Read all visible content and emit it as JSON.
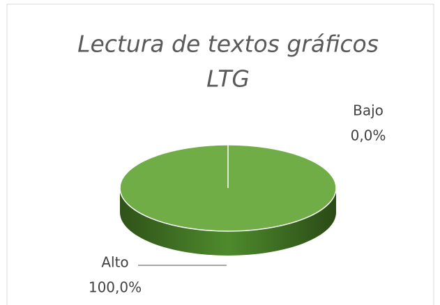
{
  "chart_data": {
    "type": "pie3d",
    "title": [
      "Lectura de textos gráficos",
      "LTG"
    ],
    "categories": [
      "Alto",
      "Bajo"
    ],
    "values": [
      100,
      0
    ],
    "value_labels": [
      "100,0%",
      "0,0%"
    ],
    "color": "#70ad47"
  }
}
